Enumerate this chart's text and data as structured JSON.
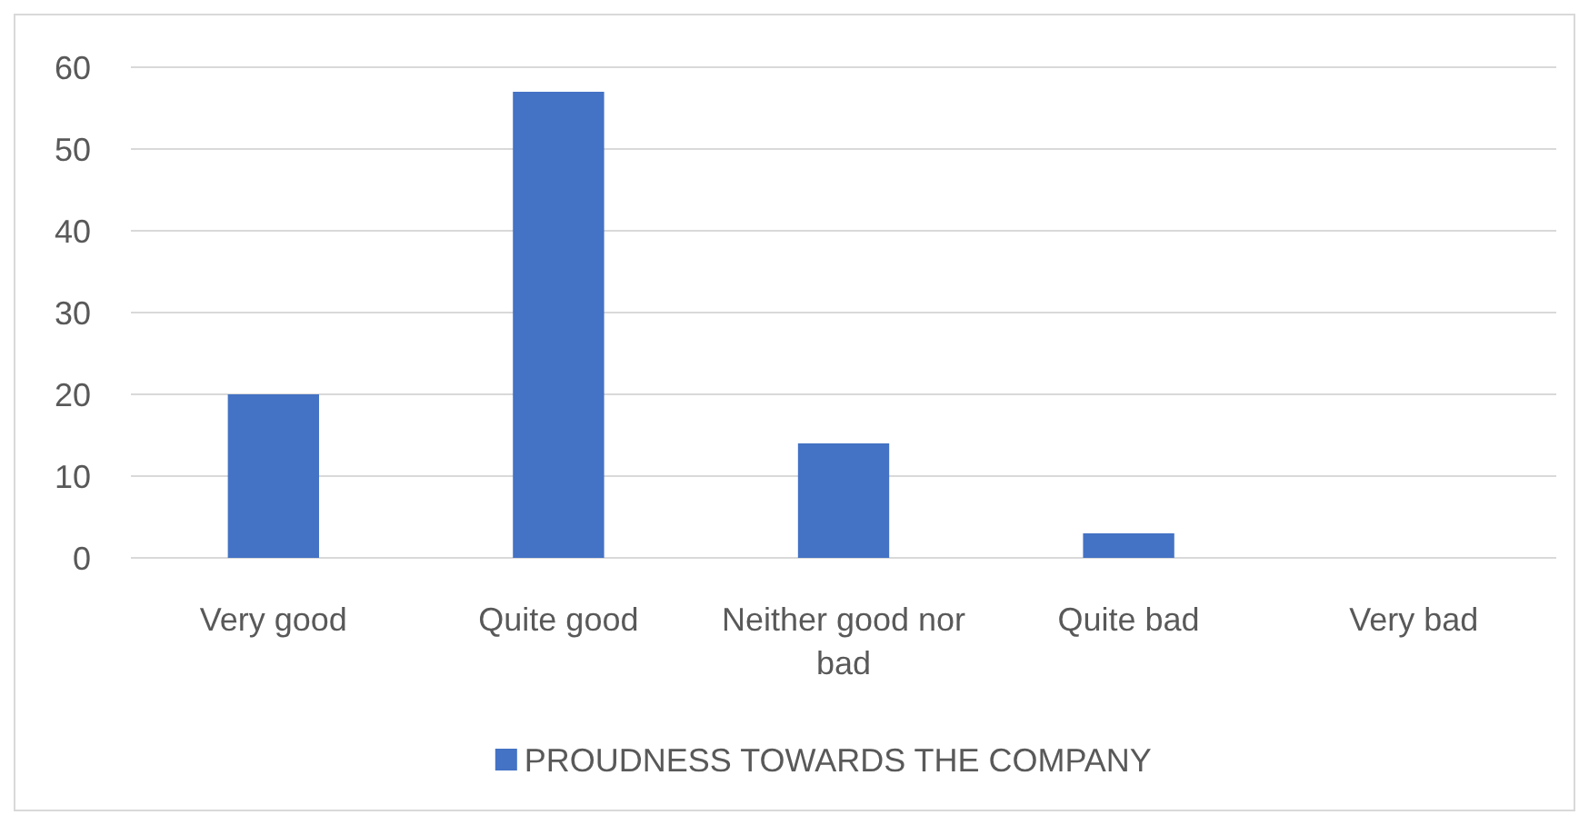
{
  "chart_data": {
    "type": "bar",
    "categories": [
      "Very good",
      "Quite good",
      "Neither good nor bad",
      "Quite bad",
      "Very bad"
    ],
    "series": [
      {
        "name": "PROUDNESS TOWARDS THE COMPANY",
        "color": "#4472c4",
        "values": [
          20,
          57,
          14,
          3,
          0
        ]
      }
    ],
    "ylim": [
      0,
      60
    ],
    "yticks": [
      0,
      10,
      20,
      30,
      40,
      50,
      60
    ],
    "grid": "y",
    "legend": "bottom"
  }
}
